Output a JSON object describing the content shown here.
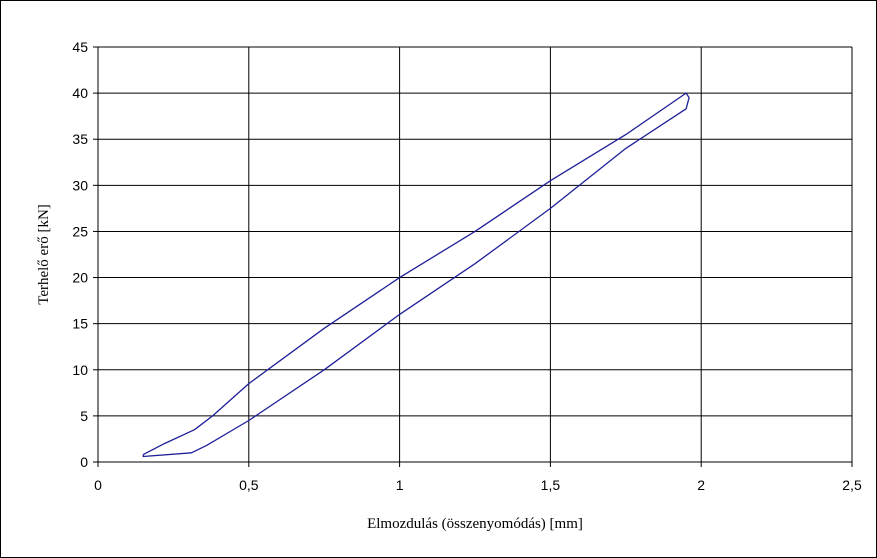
{
  "chart_data": {
    "type": "line",
    "title": "",
    "xlabel": "Elmozdulás (összenyomódás) [mm]",
    "ylabel": "Terhelő erő [kN]",
    "xlim": [
      0,
      2.5
    ],
    "ylim": [
      0,
      45
    ],
    "x_ticks": [
      0,
      0.5,
      1,
      1.5,
      2,
      2.5
    ],
    "x_tick_labels": [
      "0",
      "0,5",
      "1",
      "1,5",
      "2",
      "2,5"
    ],
    "y_ticks": [
      0,
      5,
      10,
      15,
      20,
      25,
      30,
      35,
      40,
      45
    ],
    "y_tick_labels": [
      "0",
      "5",
      "10",
      "15",
      "20",
      "25",
      "30",
      "35",
      "40",
      "45"
    ],
    "grid": true,
    "legend": "none",
    "series": [
      {
        "color": "#1f1f99",
        "x": [
          0.15,
          0.22,
          0.32,
          0.38,
          0.5,
          0.75,
          1.0,
          1.25,
          1.5,
          1.75,
          1.95,
          1.96,
          1.95,
          1.75,
          1.5,
          1.25,
          1.0,
          0.75,
          0.5,
          0.36,
          0.31,
          0.15,
          0.15
        ],
        "y": [
          0.8,
          2.0,
          3.5,
          5.0,
          8.5,
          14.5,
          20.0,
          25.0,
          30.5,
          35.5,
          40.0,
          39.5,
          38.3,
          34.0,
          27.5,
          21.5,
          16.0,
          10.0,
          4.5,
          1.8,
          1.0,
          0.6,
          0.8
        ]
      }
    ]
  }
}
